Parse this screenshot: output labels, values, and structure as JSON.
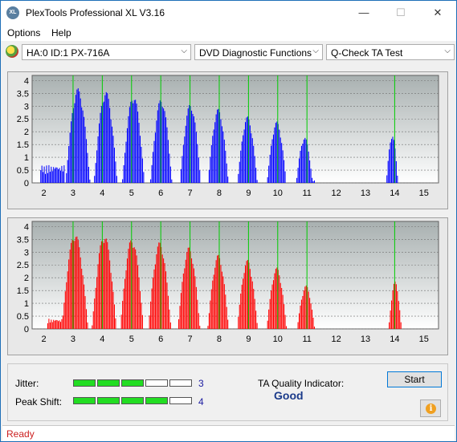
{
  "window": {
    "app_icon_text": "XL",
    "title": "PlexTools Professional XL V3.16",
    "minimize_glyph": "—",
    "maximize_glyph": "☐",
    "close_glyph": "✕"
  },
  "menu": {
    "items": [
      "Options",
      "Help"
    ]
  },
  "toolbar": {
    "drive": "HA:0 ID:1  PX-716A",
    "function": "DVD Diagnostic Functions",
    "test": "Q-Check TA Test",
    "dropdown_glyph": "⌵"
  },
  "chart_data": [
    {
      "type": "bar",
      "color": "#0000ff",
      "x_ticks": [
        2,
        3,
        4,
        5,
        6,
        7,
        8,
        9,
        10,
        11,
        12,
        13,
        14,
        15
      ],
      "xlim": [
        1.6,
        15.5
      ],
      "y_ticks": [
        0,
        0.5,
        1,
        1.5,
        2,
        2.5,
        3,
        3.5,
        4
      ],
      "y_tick_labels": [
        "0",
        "0.5",
        "1",
        "1.5",
        "2",
        "2.5",
        "3",
        "3.5",
        "4"
      ],
      "ylim": [
        0,
        4.2
      ],
      "peak_markers": [
        3,
        4,
        5,
        6,
        7,
        8,
        9,
        10,
        11,
        14
      ],
      "peaks": [
        {
          "x": 3.15,
          "h": 3.7,
          "w": 0.42
        },
        {
          "x": 4.1,
          "h": 3.6,
          "w": 0.4
        },
        {
          "x": 5.05,
          "h": 3.45,
          "w": 0.38
        },
        {
          "x": 6.0,
          "h": 3.3,
          "w": 0.37
        },
        {
          "x": 7.0,
          "h": 3.1,
          "w": 0.36
        },
        {
          "x": 7.95,
          "h": 2.9,
          "w": 0.35
        },
        {
          "x": 8.95,
          "h": 2.6,
          "w": 0.34
        },
        {
          "x": 9.95,
          "h": 2.4,
          "w": 0.33
        },
        {
          "x": 10.9,
          "h": 1.8,
          "w": 0.28
        },
        {
          "x": 13.9,
          "h": 1.9,
          "w": 0.2
        }
      ],
      "base": [
        {
          "x0": 1.85,
          "x1": 2.7,
          "h": 0.7
        },
        {
          "x0": 11.0,
          "x1": 11.25,
          "h": 0.1
        }
      ]
    },
    {
      "type": "bar",
      "color": "#ff0000",
      "x_ticks": [
        2,
        3,
        4,
        5,
        6,
        7,
        8,
        9,
        10,
        11,
        12,
        13,
        14,
        15
      ],
      "xlim": [
        1.6,
        15.5
      ],
      "y_ticks": [
        0,
        0.5,
        1,
        1.5,
        2,
        2.5,
        3,
        3.5,
        4
      ],
      "y_tick_labels": [
        "0",
        "0.5",
        "1",
        "1.5",
        "2",
        "2.5",
        "3",
        "3.5",
        "4"
      ],
      "ylim": [
        0,
        4.2
      ],
      "peak_markers": [
        3,
        4,
        5,
        6,
        7,
        8,
        9,
        10,
        11,
        14
      ],
      "peaks": [
        {
          "x": 3.05,
          "h": 3.75,
          "w": 0.45
        },
        {
          "x": 4.05,
          "h": 3.7,
          "w": 0.42
        },
        {
          "x": 5.0,
          "h": 3.55,
          "w": 0.4
        },
        {
          "x": 5.95,
          "h": 3.4,
          "w": 0.39
        },
        {
          "x": 6.95,
          "h": 3.2,
          "w": 0.38
        },
        {
          "x": 7.95,
          "h": 2.9,
          "w": 0.36
        },
        {
          "x": 8.95,
          "h": 2.7,
          "w": 0.35
        },
        {
          "x": 9.95,
          "h": 2.4,
          "w": 0.34
        },
        {
          "x": 10.95,
          "h": 1.7,
          "w": 0.3
        },
        {
          "x": 14.0,
          "h": 1.85,
          "w": 0.22
        }
      ],
      "base": [
        {
          "x0": 2.1,
          "x1": 2.7,
          "h": 0.4
        }
      ]
    }
  ],
  "results": {
    "jitter_label": "Jitter:",
    "jitter_value": "3",
    "jitter_level": 3,
    "peak_shift_label": "Peak Shift:",
    "peak_shift_value": "4",
    "peak_shift_level": 4,
    "segments_total": 5,
    "segment_on_color": "#22dd22",
    "ta_label": "TA Quality Indicator:",
    "quality": "Good",
    "start_label": "Start",
    "info_glyph": "i"
  },
  "status": {
    "text": "Ready"
  }
}
